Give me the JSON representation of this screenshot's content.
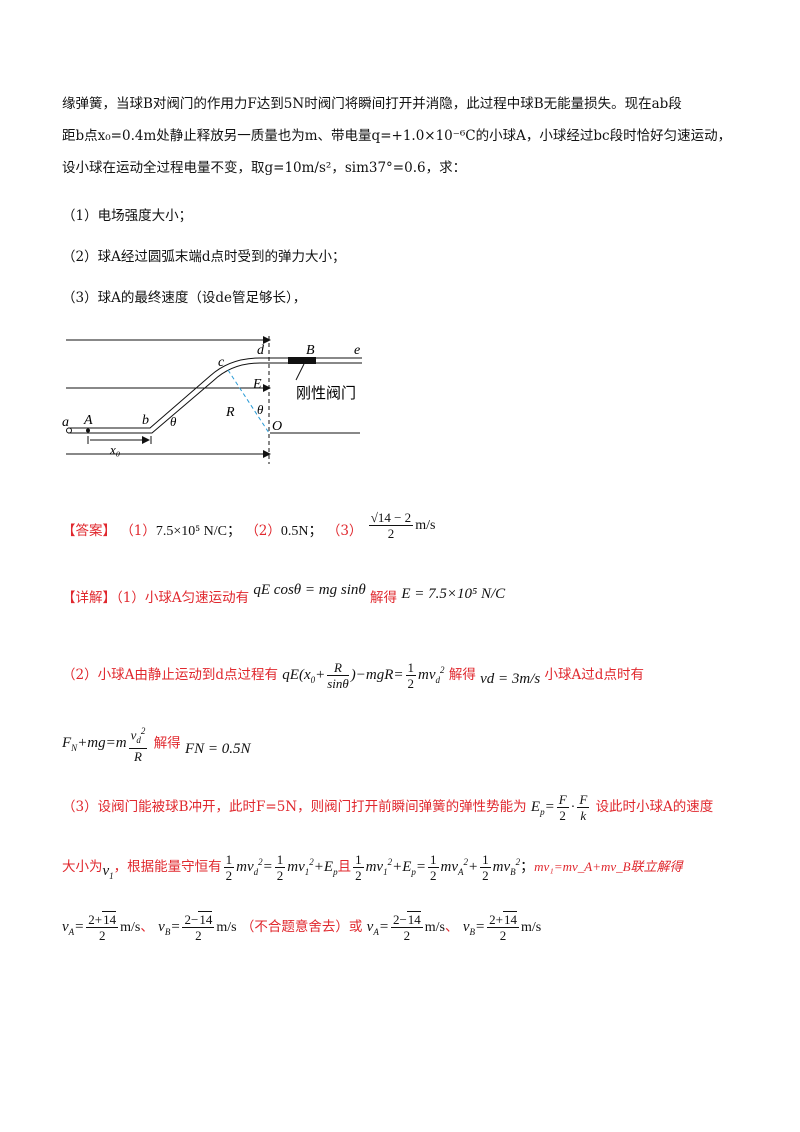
{
  "problem": {
    "p1": "缘弹簧，当球B对阀门的作用力F达到5N时阀门将瞬间打开并消隐，此过程中球B无能量损失。现在ab段",
    "p2": "距b点x₀=0.4m处静止释放另一质量也为m、带电量q=+1.0×10⁻⁶C的小球A，小球经过bc段时恰好匀速运动，",
    "p3": "设小球在运动全过程电量不变，取g=10m/s²，sim37°=0.6，求：",
    "q1": "（1）电场强度大小；",
    "q2": "（2）球A经过圆弧末端d点时受到的弹力大小；",
    "q3": "（3）球A的最终速度（设de管足够长），"
  },
  "figure": {
    "labels": [
      "a",
      "A",
      "b",
      "θ",
      "x₀",
      "c",
      "d",
      "B",
      "e",
      "E",
      "R",
      "θ",
      "O"
    ],
    "valve_label": "刚性阀门"
  },
  "answer": {
    "tag": "【答案】",
    "a1_prefix": "（1）",
    "a1": "7.5×10⁵ N/C；",
    "a2_prefix": "（2）",
    "a2": "0.5N；",
    "a3_prefix": "（3）",
    "a3_num": "√14 − 2",
    "a3_den": "2",
    "a3_unit": "m/s"
  },
  "detail": {
    "tag": "【详解】",
    "s1_text": "（1）小球A匀速运动有",
    "s1_eq": "qE cosθ = mg sinθ",
    "s1_solve": "解得",
    "s1_res": "E = 7.5×10⁵ N/C",
    "s2_text": "（2）小球A由静止运动到d点过程有",
    "s2_solve": "解得",
    "s2_res": "vd = 3m/s",
    "s2_tail": "小球A过d点时有",
    "s2b_solve": "解得",
    "s2b_res": "FN = 0.5N",
    "s3_text": "（3）设阀门能被球B冲开，此时F=5N，则阀门打开前瞬间弹簧的弹性势能为",
    "s3_tail": "设此时小球A的速度",
    "s3b_text": "大小为",
    "s3b_mid": "，根据能量守恒有",
    "s3b_and": "且",
    "s3b_tail": "mv₁=mv_A+mv_B联立解得",
    "final_reject": "（不合题意舍去）或",
    "sep": "、"
  }
}
